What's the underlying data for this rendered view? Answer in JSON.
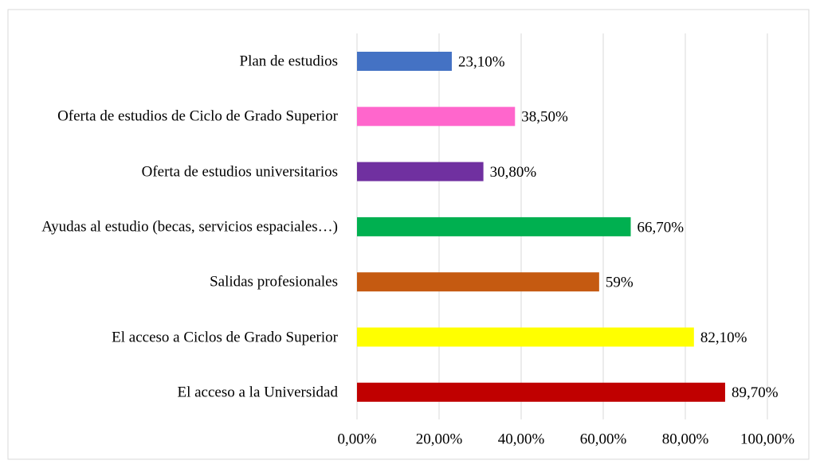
{
  "chart_data": {
    "type": "bar",
    "orientation": "horizontal",
    "categories": [
      "Plan de estudios",
      "Oferta de estudios de Ciclo de Grado Superior",
      "Oferta de estudios universitarios",
      "Ayudas al estudio (becas, servicios espaciales…)",
      "Salidas profesionales",
      "El acceso a Ciclos de Grado Superior",
      "El acceso a la Universidad"
    ],
    "values": [
      23.1,
      38.5,
      30.8,
      66.7,
      59,
      82.1,
      89.7
    ],
    "value_labels": [
      "23,10%",
      "38,50%",
      "30,80%",
      "66,70%",
      "59%",
      "82,10%",
      "89,70%"
    ],
    "colors": [
      "#4472c4",
      "#ff66cc",
      "#7030a0",
      "#00b050",
      "#c55a11",
      "#ffff00",
      "#c00000"
    ],
    "xlim": [
      0,
      100
    ],
    "xticks": [
      {
        "value": 0,
        "label": "0,00%"
      },
      {
        "value": 20,
        "label": "20,00%"
      },
      {
        "value": 40,
        "label": "40,00%"
      },
      {
        "value": 60,
        "label": "60,00%"
      },
      {
        "value": 80,
        "label": "80,00%"
      },
      {
        "value": 100,
        "label": "100,00%"
      }
    ],
    "grid": true
  }
}
